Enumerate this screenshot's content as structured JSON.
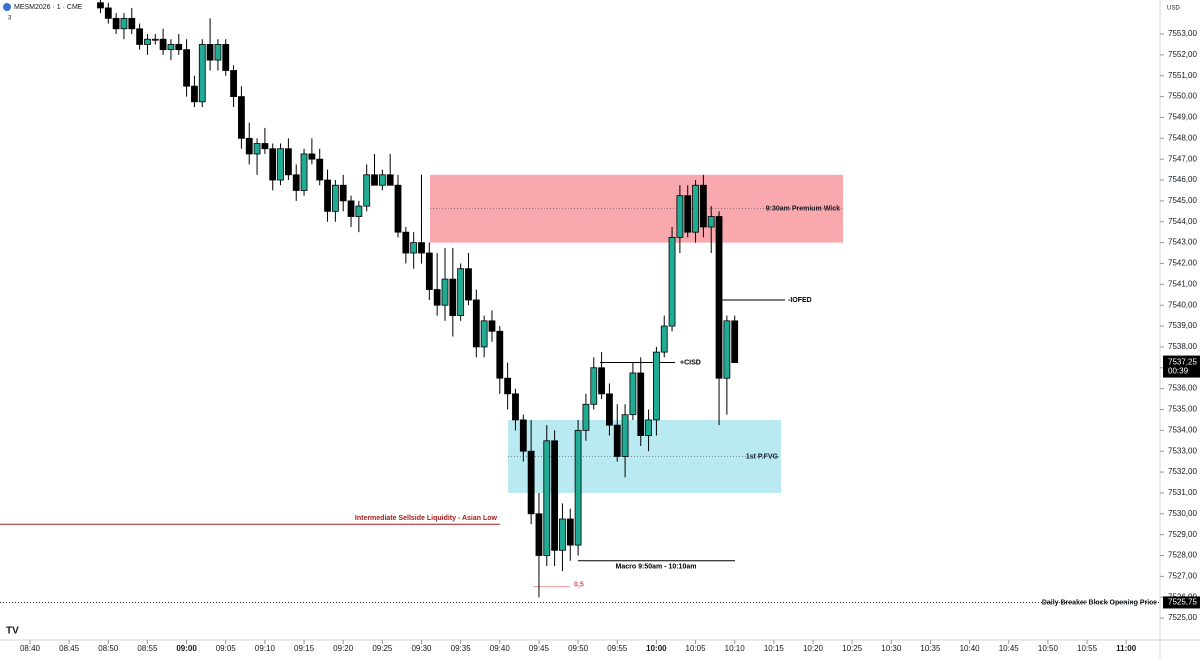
{
  "chart_data": {
    "type": "candlestick",
    "title": "MESM2026 · 1 · CME",
    "interval_count": "3",
    "currency": "USD",
    "up_color": "#22ab94",
    "down_color": "#000000",
    "xticks": [
      "08:40",
      "08:45",
      "08:50",
      "08:55",
      "09:00",
      "09:05",
      "09:10",
      "09:15",
      "09:20",
      "09:25",
      "09:30",
      "09:35",
      "09:40",
      "09:45",
      "09:50",
      "09:55",
      "10:00",
      "10:05",
      "10:10",
      "10:15",
      "10:20",
      "10:25",
      "10:30",
      "10:35",
      "10:40",
      "10:45",
      "10:50",
      "10:55",
      "11:00"
    ],
    "ylim": [
      7523.95,
      7554.63
    ],
    "yticks": [
      {
        "value": 7525,
        "label": "7525,00"
      },
      {
        "value": 7526,
        "label": "7526,00"
      },
      {
        "value": 7527,
        "label": "7527,00"
      },
      {
        "value": 7528,
        "label": "7528,00"
      },
      {
        "value": 7529,
        "label": "7529,00"
      },
      {
        "value": 7530,
        "label": "7530,00"
      },
      {
        "value": 7531,
        "label": "7531,00"
      },
      {
        "value": 7532,
        "label": "7532,00"
      },
      {
        "value": 7533,
        "label": "7533,00"
      },
      {
        "value": 7534,
        "label": "7534,00"
      },
      {
        "value": 7535,
        "label": "7535,00"
      },
      {
        "value": 7536,
        "label": "7536,00"
      },
      {
        "value": 7537,
        "label": "7537,00"
      },
      {
        "value": 7538,
        "label": "7538,00"
      },
      {
        "value": 7539,
        "label": "7539,00"
      },
      {
        "value": 7540,
        "label": "7540,00"
      },
      {
        "value": 7541,
        "label": "7541,00"
      },
      {
        "value": 7542,
        "label": "7542,00"
      },
      {
        "value": 7543,
        "label": "7543,00"
      },
      {
        "value": 7544,
        "label": "7544,00"
      },
      {
        "value": 7545,
        "label": "7545,00"
      },
      {
        "value": 7546,
        "label": "7546,00"
      },
      {
        "value": 7547,
        "label": "7547,00"
      },
      {
        "value": 7548,
        "label": "7548,00"
      },
      {
        "value": 7549,
        "label": "7549,00"
      },
      {
        "value": 7550,
        "label": "7550,00"
      },
      {
        "value": 7551,
        "label": "7551,00"
      },
      {
        "value": 7552,
        "label": "7552,00"
      },
      {
        "value": 7553,
        "label": "7553,00"
      }
    ],
    "open": [
      7554.5,
      7554.25,
      7553.75,
      7553.25,
      7553.75,
      7553.25,
      7552.5,
      7552.75,
      7552.75,
      7552.25,
      7552.5,
      7552.25,
      7550.5,
      7549.75,
      7552.5,
      7551.75,
      7552.5,
      7551.25,
      7550,
      7548,
      7547.25,
      7547.75,
      7547.5,
      7546,
      7547.5,
      7546.25,
      7545.5,
      7547.25,
      7547,
      7546,
      7544.5,
      7545.75,
      7545,
      7544.25,
      7544.75,
      7546.25,
      7545.75,
      7546.25,
      7545.75,
      7543.5,
      7542.5,
      7543,
      7542.5,
      7540.75,
      7540,
      7541.25,
      7539.5,
      7541.75,
      7540.25,
      7538,
      7539.25,
      7538.75,
      7536.5,
      7535.75,
      7534.5,
      7533,
      7530,
      7528,
      7533.5,
      7528.25,
      7529.75,
      7528.5,
      7534,
      7535.25,
      7537,
      7535.75,
      7534.25,
      7532.75,
      7534.75,
      7536.75,
      7533.75,
      7534.5,
      7537.75,
      7539,
      7543.25,
      7545.25,
      7543.5,
      7545.75,
      7543.75,
      7544.25,
      7536.5,
      7539.25
    ],
    "high": [
      7554.75,
      7554.5,
      7554,
      7554,
      7554.25,
      7553.5,
      7553,
      7553,
      7553.25,
      7552.75,
      7553,
      7552.75,
      7551,
      7552.75,
      7553.75,
      7552.75,
      7552.75,
      7551.5,
      7550.5,
      7548.75,
      7548,
      7548.5,
      7547.75,
      7547.75,
      7548,
      7546.75,
      7547.5,
      7548,
      7547.5,
      7546.5,
      7546,
      7546.25,
      7545.25,
      7545,
      7546.75,
      7547.25,
      7546.5,
      7547.25,
      7546.25,
      7543.75,
      7543.5,
      7546.25,
      7543,
      7542.5,
      7542.75,
      7542.75,
      7542,
      7542.5,
      7540.75,
      7539.5,
      7539.75,
      7539,
      7537.25,
      7536,
      7534.75,
      7534.5,
      7531,
      7534.25,
      7534,
      7530.5,
      7530.25,
      7534.5,
      7535.75,
      7537.5,
      7537.75,
      7536.25,
      7535.25,
      7535.25,
      7537.25,
      7537.5,
      7535,
      7538,
      7539.5,
      7543.75,
      7545.75,
      7545.75,
      7546,
      7546.25,
      7544.75,
      7544.5,
      7539.5,
      7539.5
    ],
    "low": [
      7554,
      7553.5,
      7553,
      7552.75,
      7553,
      7552.25,
      7552,
      7552.5,
      7552,
      7551.75,
      7552,
      7550,
      7549.5,
      7549.5,
      7551.25,
      7551.25,
      7551,
      7549.5,
      7547.5,
      7546.75,
      7546.25,
      7547.25,
      7545.5,
      7545.75,
      7546,
      7545,
      7545.25,
      7546.75,
      7545.75,
      7544,
      7544,
      7544.5,
      7543.75,
      7543.5,
      7544.5,
      7545.75,
      7545.5,
      7545.75,
      7543.25,
      7542,
      7541.75,
      7542,
      7540.25,
      7539.5,
      7539.25,
      7538.5,
      7539.25,
      7540,
      7537.5,
      7537.5,
      7538.25,
      7535.75,
      7535,
      7534,
      7532.5,
      7529.5,
      7526,
      7527.5,
      7527.5,
      7527.25,
      7527.75,
      7528,
      7533.5,
      7535,
      7535.5,
      7533.75,
      7532.5,
      7531.75,
      7534.5,
      7533.25,
      7533,
      7533.75,
      7537.5,
      7538.75,
      7542.5,
      7543.25,
      7543,
      7543.25,
      7542.5,
      7534.25,
      7534.75,
      7537.25
    ],
    "close": [
      7554.25,
      7553.75,
      7553.25,
      7553.75,
      7553.25,
      7552.5,
      7552.75,
      7552.75,
      7552.25,
      7552.5,
      7552.25,
      7550.5,
      7549.75,
      7552.5,
      7551.75,
      7552.5,
      7551.25,
      7550,
      7548,
      7547.25,
      7547.75,
      7547.5,
      7546,
      7547.5,
      7546.25,
      7545.5,
      7547.25,
      7547,
      7546,
      7544.5,
      7545.75,
      7545,
      7544.25,
      7544.75,
      7546.25,
      7545.75,
      7546.25,
      7545.75,
      7543.5,
      7542.5,
      7543,
      7542.5,
      7540.75,
      7540,
      7541.25,
      7539.5,
      7541.75,
      7540.25,
      7538,
      7539.25,
      7538.75,
      7536.5,
      7535.75,
      7534.5,
      7533,
      7530,
      7528,
      7533.5,
      7528.25,
      7529.75,
      7528.5,
      7534,
      7535.25,
      7537,
      7535.75,
      7534.25,
      7532.75,
      7534.75,
      7536.75,
      7533.75,
      7534.5,
      7537.75,
      7539,
      7543.25,
      7545.25,
      7543.5,
      7545.75,
      7543.75,
      7544.25,
      7536.5,
      7539.25,
      7537.25
    ],
    "zones": [
      {
        "label": "9:30am Premium Wick",
        "low": 7543.0,
        "high": 7546.25,
        "color": "#f9a9ad"
      },
      {
        "label": "1st P.FVG",
        "low": 7531.0,
        "high": 7534.5,
        "color": "#b9eaf1"
      }
    ],
    "levels": [
      {
        "label": "Intermediate Sellside Liquidity - Asian Low",
        "value": 7529.5,
        "color": "#a51c1c"
      },
      {
        "label": "Macro 9:50am - 10:10am",
        "value": 7527.75,
        "color": "#000000"
      },
      {
        "label": "+CISD",
        "value": 7537.25,
        "color": "#000000"
      },
      {
        "label": "-IOFED",
        "value": 7540.25,
        "color": "#000000"
      },
      {
        "label": "0,5",
        "value": 7526.5,
        "color": "#d1525a"
      }
    ],
    "breaker": {
      "label": "Daily Breaker Block Opening Price",
      "value": 7525.75,
      "price_label": "7525,75"
    },
    "last_price": {
      "value": 7537.25,
      "label": "7537,25",
      "countdown": "00:39"
    }
  }
}
